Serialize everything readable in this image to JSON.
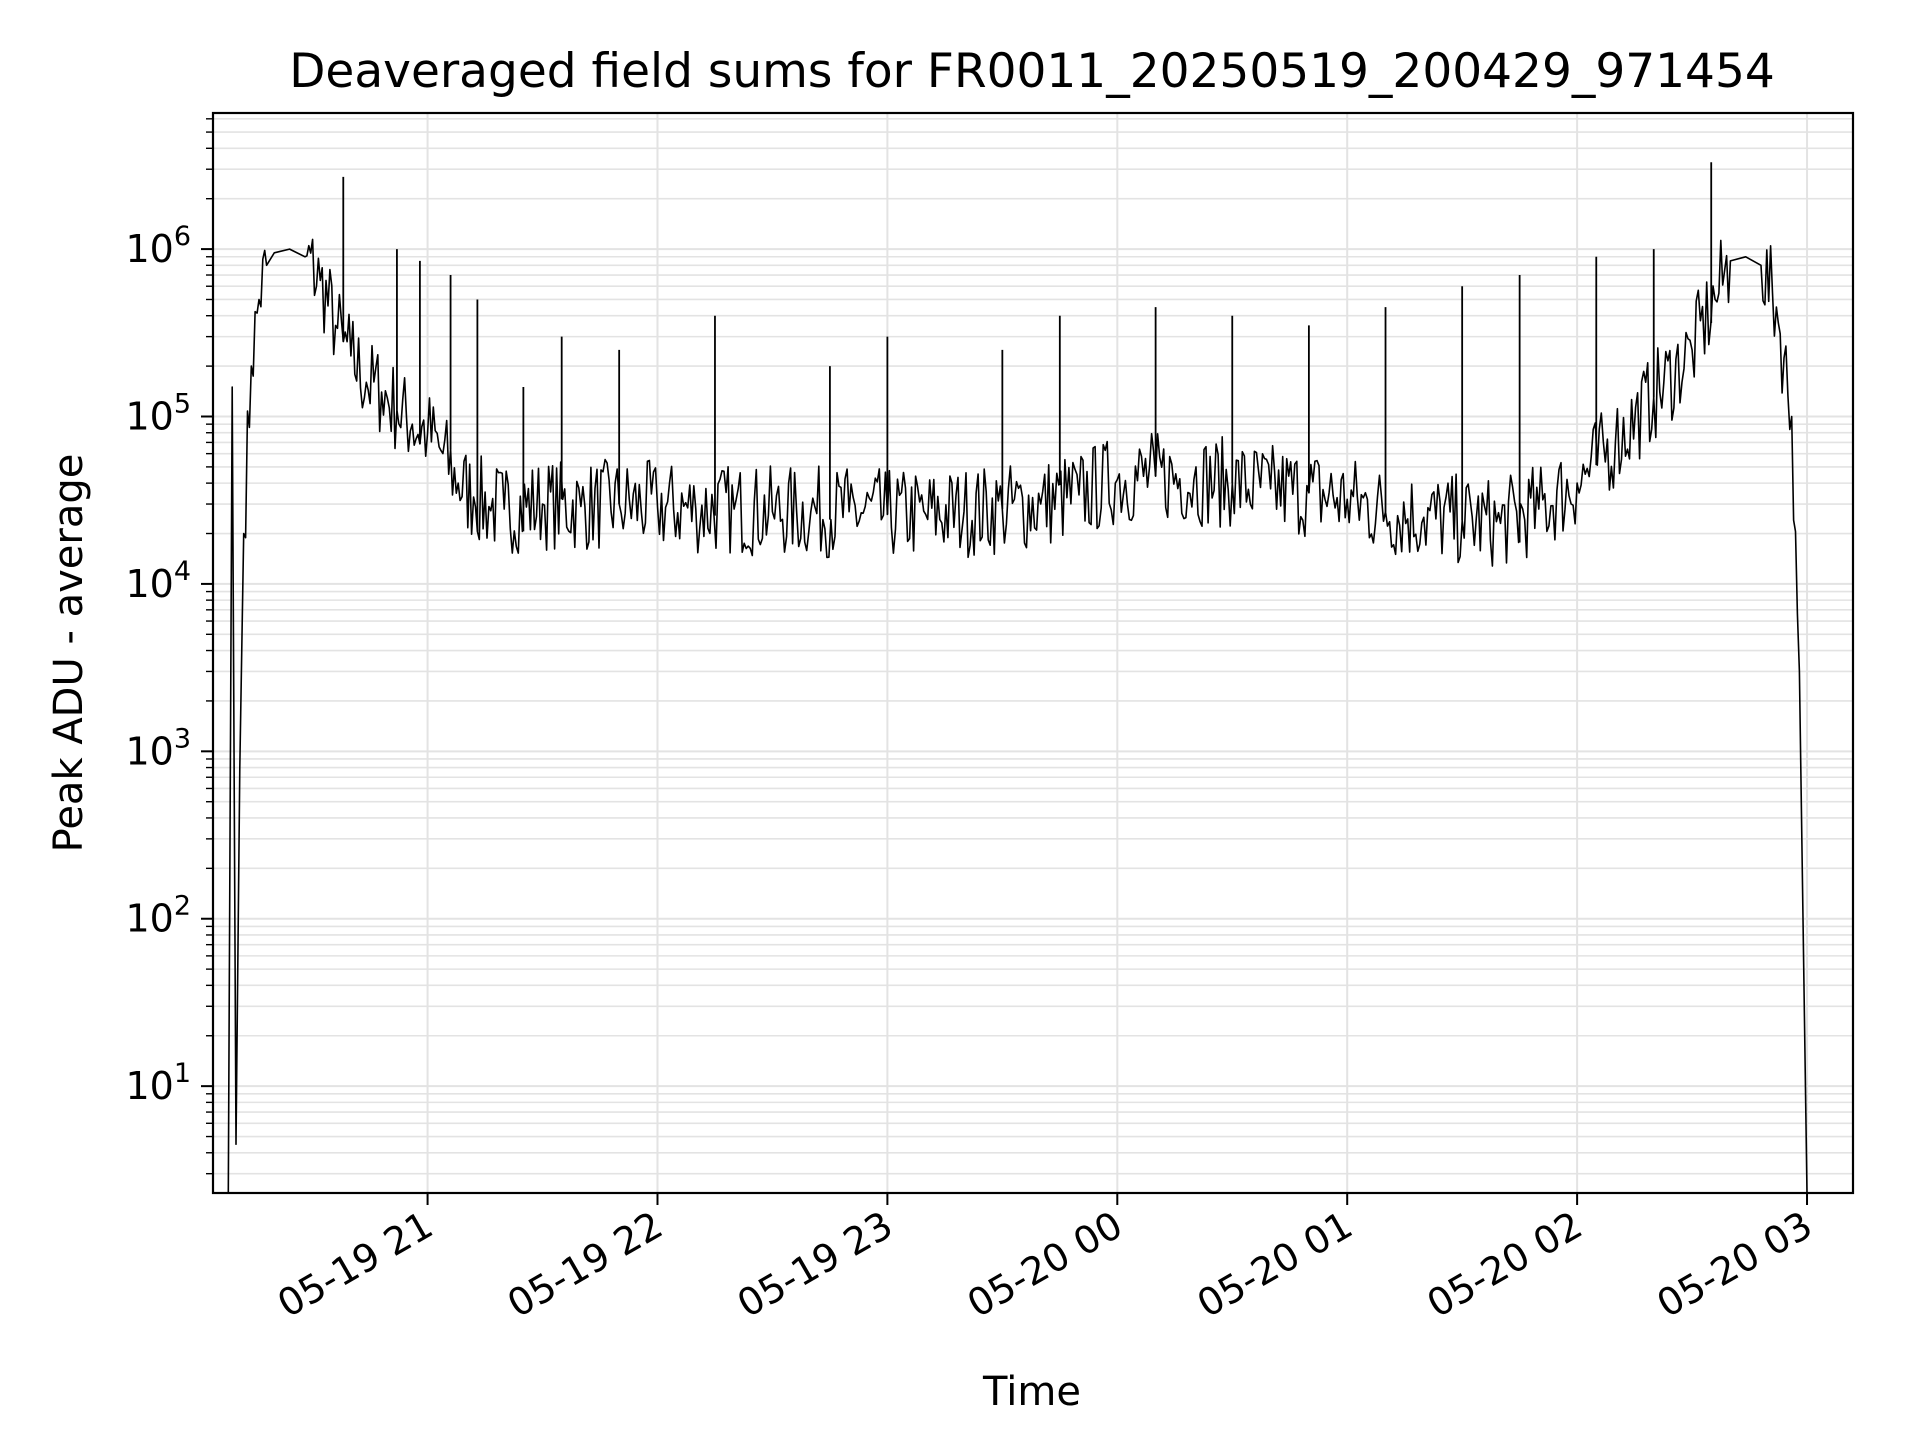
{
  "chart_data": {
    "type": "line",
    "title": "Deaveraged field sums for FR0011_20250519_200429_971454",
    "xlabel": "Time",
    "ylabel": "Peak ADU - average",
    "yscale": "log",
    "grid": true,
    "line_color": "#000000",
    "grid_color": "#e3e3e3",
    "xlim": [
      "2025-05-19 20:04",
      "2025-05-20 03:12"
    ],
    "ylim": [
      2.3,
      6500000
    ],
    "x_tick_labels": [
      "05-19 21",
      "05-19 22",
      "05-19 23",
      "05-20 00",
      "05-20 01",
      "05-20 02",
      "05-20 03"
    ],
    "x_tick_values": [
      "2025-05-19 21:00",
      "2025-05-19 22:00",
      "2025-05-19 23:00",
      "2025-05-20 00:00",
      "2025-05-20 01:00",
      "2025-05-20 02:00",
      "2025-05-20 03:00"
    ],
    "y_tick_labels": [
      {
        "base": "10",
        "exp": "1"
      },
      {
        "base": "10",
        "exp": "2"
      },
      {
        "base": "10",
        "exp": "3"
      },
      {
        "base": "10",
        "exp": "4"
      },
      {
        "base": "10",
        "exp": "5"
      },
      {
        "base": "10",
        "exp": "6"
      }
    ],
    "y_tick_values": [
      10,
      100,
      1000,
      10000,
      100000,
      1000000
    ],
    "series": [
      {
        "x": [
          "2025-05-19 20:08",
          "2025-05-19 20:09",
          "2025-05-19 20:10",
          "2025-05-19 20:11",
          "2025-05-19 20:12",
          "2025-05-19 20:14",
          "2025-05-19 20:16",
          "2025-05-19 20:18",
          "2025-05-19 20:20",
          "2025-05-19 20:24",
          "2025-05-19 20:28",
          "2025-05-19 20:32",
          "2025-05-19 20:36",
          "2025-05-19 20:38",
          "2025-05-19 20:40",
          "2025-05-19 20:44",
          "2025-05-19 20:48",
          "2025-05-19 20:52",
          "2025-05-19 20:56",
          "2025-05-19 21:00",
          "2025-05-19 21:04",
          "2025-05-19 21:08",
          "2025-05-19 21:12",
          "2025-05-19 21:16",
          "2025-05-19 21:20",
          "2025-05-19 21:30",
          "2025-05-19 21:40",
          "2025-05-19 21:50",
          "2025-05-19 22:00",
          "2025-05-19 22:10",
          "2025-05-19 22:20",
          "2025-05-19 22:30",
          "2025-05-19 22:40",
          "2025-05-19 22:50",
          "2025-05-19 23:00",
          "2025-05-19 23:10",
          "2025-05-19 23:20",
          "2025-05-19 23:30",
          "2025-05-19 23:40",
          "2025-05-19 23:50",
          "2025-05-20 00:00",
          "2025-05-20 00:10",
          "2025-05-20 00:20",
          "2025-05-20 00:30",
          "2025-05-20 00:40",
          "2025-05-20 00:50",
          "2025-05-20 01:00",
          "2025-05-20 01:10",
          "2025-05-20 01:20",
          "2025-05-20 01:30",
          "2025-05-20 01:40",
          "2025-05-20 01:50",
          "2025-05-20 02:00",
          "2025-05-20 02:10",
          "2025-05-20 02:20",
          "2025-05-20 02:30",
          "2025-05-20 02:36",
          "2025-05-20 02:40",
          "2025-05-20 02:44",
          "2025-05-20 02:48",
          "2025-05-20 02:52",
          "2025-05-20 02:56",
          "2025-05-20 02:58",
          "2025-05-20 03:00"
        ],
        "y": [
          2.3,
          150000,
          4.5,
          800,
          20000,
          200000,
          500000,
          800000,
          950000,
          1000000,
          900000,
          650000,
          350000,
          280000,
          230000,
          160000,
          140000,
          110000,
          90000,
          80000,
          60000,
          40000,
          33000,
          29000,
          28000,
          30000,
          29000,
          30000,
          29000,
          28000,
          28000,
          27000,
          27000,
          27000,
          26000,
          26000,
          27000,
          28000,
          30000,
          34000,
          42000,
          44000,
          42000,
          40000,
          37000,
          35000,
          32000,
          27000,
          25000,
          24000,
          23000,
          28000,
          40000,
          70000,
          130000,
          250000,
          500000,
          850000,
          900000,
          800000,
          450000,
          100000,
          3000,
          2.3
        ],
        "spikes": [
          {
            "x": "2025-05-19 20:38",
            "y": 2700000
          },
          {
            "x": "2025-05-19 20:52",
            "y": 1000000
          },
          {
            "x": "2025-05-19 20:58",
            "y": 850000
          },
          {
            "x": "2025-05-19 21:06",
            "y": 700000
          },
          {
            "x": "2025-05-19 21:13",
            "y": 500000
          },
          {
            "x": "2025-05-19 21:25",
            "y": 150000
          },
          {
            "x": "2025-05-19 21:35",
            "y": 300000
          },
          {
            "x": "2025-05-19 21:50",
            "y": 250000
          },
          {
            "x": "2025-05-19 22:15",
            "y": 400000
          },
          {
            "x": "2025-05-19 22:45",
            "y": 200000
          },
          {
            "x": "2025-05-19 23:00",
            "y": 300000
          },
          {
            "x": "2025-05-19 23:30",
            "y": 250000
          },
          {
            "x": "2025-05-19 23:45",
            "y": 400000
          },
          {
            "x": "2025-05-20 00:10",
            "y": 450000
          },
          {
            "x": "2025-05-20 00:30",
            "y": 400000
          },
          {
            "x": "2025-05-20 00:50",
            "y": 350000
          },
          {
            "x": "2025-05-20 01:10",
            "y": 450000
          },
          {
            "x": "2025-05-20 01:30",
            "y": 600000
          },
          {
            "x": "2025-05-20 01:45",
            "y": 700000
          },
          {
            "x": "2025-05-20 02:05",
            "y": 900000
          },
          {
            "x": "2025-05-20 02:20",
            "y": 1000000
          },
          {
            "x": "2025-05-20 02:35",
            "y": 3300000
          }
        ]
      }
    ]
  }
}
